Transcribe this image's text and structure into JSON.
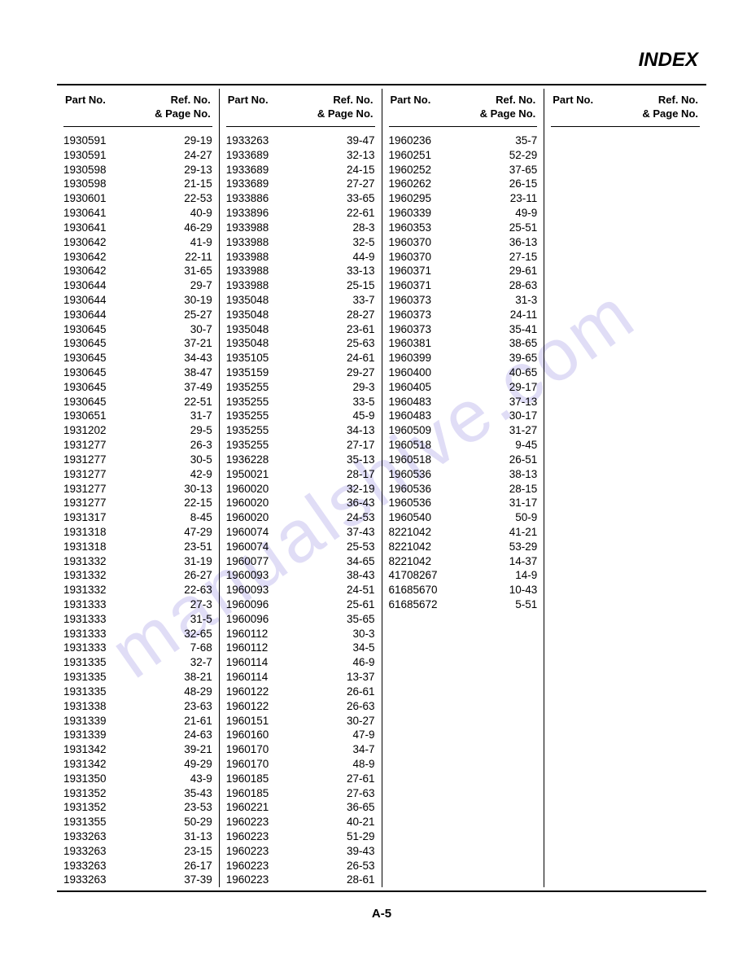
{
  "title": "INDEX",
  "page_number": "A-5",
  "watermark": "manualshive.com",
  "header": {
    "part": "Part No.",
    "ref": "Ref. No.",
    "page": "&  Page No."
  },
  "columns": [
    [
      {
        "part": "1930591",
        "ref": "29-19"
      },
      {
        "part": "1930591",
        "ref": "24-27"
      },
      {
        "part": "1930598",
        "ref": "29-13"
      },
      {
        "part": "1930598",
        "ref": "21-15"
      },
      {
        "part": "1930601",
        "ref": "22-53"
      },
      {
        "part": "1930641",
        "ref": "40-9"
      },
      {
        "part": "1930641",
        "ref": "46-29"
      },
      {
        "part": "1930642",
        "ref": "41-9"
      },
      {
        "part": "1930642",
        "ref": "22-11"
      },
      {
        "part": "1930642",
        "ref": "31-65"
      },
      {
        "part": "1930644",
        "ref": "29-7"
      },
      {
        "part": "1930644",
        "ref": "30-19"
      },
      {
        "part": "1930644",
        "ref": "25-27"
      },
      {
        "part": "1930645",
        "ref": "30-7"
      },
      {
        "part": "1930645",
        "ref": "37-21"
      },
      {
        "part": "1930645",
        "ref": "34-43"
      },
      {
        "part": "1930645",
        "ref": "38-47"
      },
      {
        "part": "1930645",
        "ref": "37-49"
      },
      {
        "part": "1930645",
        "ref": "22-51"
      },
      {
        "part": "1930651",
        "ref": "31-7"
      },
      {
        "part": "1931202",
        "ref": "29-5"
      },
      {
        "part": "1931277",
        "ref": "26-3"
      },
      {
        "part": "1931277",
        "ref": "30-5"
      },
      {
        "part": "1931277",
        "ref": "42-9"
      },
      {
        "part": "1931277",
        "ref": "30-13"
      },
      {
        "part": "1931277",
        "ref": "22-15"
      },
      {
        "part": "1931317",
        "ref": "8-45"
      },
      {
        "part": "1931318",
        "ref": "47-29"
      },
      {
        "part": "1931318",
        "ref": "23-51"
      },
      {
        "part": "1931332",
        "ref": "31-19"
      },
      {
        "part": "1931332",
        "ref": "26-27"
      },
      {
        "part": "1931332",
        "ref": "22-63"
      },
      {
        "part": "1931333",
        "ref": "27-3"
      },
      {
        "part": "1931333",
        "ref": "31-5"
      },
      {
        "part": "1931333",
        "ref": "32-65"
      },
      {
        "part": "1931333",
        "ref": "7-68"
      },
      {
        "part": "1931335",
        "ref": "32-7"
      },
      {
        "part": "1931335",
        "ref": "38-21"
      },
      {
        "part": "1931335",
        "ref": "48-29"
      },
      {
        "part": "1931338",
        "ref": "23-63"
      },
      {
        "part": "1931339",
        "ref": "21-61"
      },
      {
        "part": "1931339",
        "ref": "24-63"
      },
      {
        "part": "1931342",
        "ref": "39-21"
      },
      {
        "part": "1931342",
        "ref": "49-29"
      },
      {
        "part": "1931350",
        "ref": "43-9"
      },
      {
        "part": "1931352",
        "ref": "35-43"
      },
      {
        "part": "1931352",
        "ref": "23-53"
      },
      {
        "part": "1931355",
        "ref": "50-29"
      },
      {
        "part": "1933263",
        "ref": "31-13"
      },
      {
        "part": "1933263",
        "ref": "23-15"
      },
      {
        "part": "1933263",
        "ref": "26-17"
      },
      {
        "part": "1933263",
        "ref": "37-39"
      }
    ],
    [
      {
        "part": "1933263",
        "ref": "39-47"
      },
      {
        "part": "1933689",
        "ref": "32-13"
      },
      {
        "part": "1933689",
        "ref": "24-15"
      },
      {
        "part": "1933689",
        "ref": "27-27"
      },
      {
        "part": "1933886",
        "ref": "33-65"
      },
      {
        "part": "1933896",
        "ref": "22-61"
      },
      {
        "part": "1933988",
        "ref": "28-3"
      },
      {
        "part": "1933988",
        "ref": "32-5"
      },
      {
        "part": "1933988",
        "ref": "44-9"
      },
      {
        "part": "1933988",
        "ref": "33-13"
      },
      {
        "part": "1933988",
        "ref": "25-15"
      },
      {
        "part": "1935048",
        "ref": "33-7"
      },
      {
        "part": "1935048",
        "ref": "28-27"
      },
      {
        "part": "1935048",
        "ref": "23-61"
      },
      {
        "part": "1935048",
        "ref": "25-63"
      },
      {
        "part": "1935105",
        "ref": "24-61"
      },
      {
        "part": "1935159",
        "ref": "29-27"
      },
      {
        "part": "1935255",
        "ref": "29-3"
      },
      {
        "part": "1935255",
        "ref": "33-5"
      },
      {
        "part": "1935255",
        "ref": "45-9"
      },
      {
        "part": "1935255",
        "ref": "34-13"
      },
      {
        "part": "1935255",
        "ref": "27-17"
      },
      {
        "part": "1936228",
        "ref": "35-13"
      },
      {
        "part": "1950021",
        "ref": "28-17"
      },
      {
        "part": "1960020",
        "ref": "32-19"
      },
      {
        "part": "1960020",
        "ref": "36-43"
      },
      {
        "part": "1960020",
        "ref": "24-53"
      },
      {
        "part": "1960074",
        "ref": "37-43"
      },
      {
        "part": "1960074",
        "ref": "25-53"
      },
      {
        "part": "1960077",
        "ref": "34-65"
      },
      {
        "part": "1960093",
        "ref": "38-43"
      },
      {
        "part": "1960093",
        "ref": "24-51"
      },
      {
        "part": "1960096",
        "ref": "25-61"
      },
      {
        "part": "1960096",
        "ref": "35-65"
      },
      {
        "part": "1960112",
        "ref": "30-3"
      },
      {
        "part": "1960112",
        "ref": "34-5"
      },
      {
        "part": "1960114",
        "ref": "46-9"
      },
      {
        "part": "1960114",
        "ref": "13-37"
      },
      {
        "part": "1960122",
        "ref": "26-61"
      },
      {
        "part": "1960122",
        "ref": "26-63"
      },
      {
        "part": "1960151",
        "ref": "30-27"
      },
      {
        "part": "1960160",
        "ref": "47-9"
      },
      {
        "part": "1960170",
        "ref": "34-7"
      },
      {
        "part": "1960170",
        "ref": "48-9"
      },
      {
        "part": "1960185",
        "ref": "27-61"
      },
      {
        "part": "1960185",
        "ref": "27-63"
      },
      {
        "part": "1960221",
        "ref": "36-65"
      },
      {
        "part": "1960223",
        "ref": "40-21"
      },
      {
        "part": "1960223",
        "ref": "51-29"
      },
      {
        "part": "1960223",
        "ref": "39-43"
      },
      {
        "part": "1960223",
        "ref": "26-53"
      },
      {
        "part": "1960223",
        "ref": "28-61"
      }
    ],
    [
      {
        "part": "1960236",
        "ref": "35-7"
      },
      {
        "part": "1960251",
        "ref": "52-29"
      },
      {
        "part": "1960252",
        "ref": "37-65"
      },
      {
        "part": "1960262",
        "ref": "26-15"
      },
      {
        "part": "1960295",
        "ref": "23-11"
      },
      {
        "part": "1960339",
        "ref": "49-9"
      },
      {
        "part": "1960353",
        "ref": "25-51"
      },
      {
        "part": "1960370",
        "ref": "36-13"
      },
      {
        "part": "1960370",
        "ref": "27-15"
      },
      {
        "part": "1960371",
        "ref": "29-61"
      },
      {
        "part": "1960371",
        "ref": "28-63"
      },
      {
        "part": "1960373",
        "ref": "31-3"
      },
      {
        "part": "1960373",
        "ref": "24-11"
      },
      {
        "part": "1960373",
        "ref": "35-41"
      },
      {
        "part": "1960381",
        "ref": "38-65"
      },
      {
        "part": "1960399",
        "ref": "39-65"
      },
      {
        "part": "1960400",
        "ref": "40-65"
      },
      {
        "part": "1960405",
        "ref": "29-17"
      },
      {
        "part": "1960483",
        "ref": "37-13"
      },
      {
        "part": "1960483",
        "ref": "30-17"
      },
      {
        "part": "1960509",
        "ref": "31-27"
      },
      {
        "part": "1960518",
        "ref": "9-45"
      },
      {
        "part": "1960518",
        "ref": "26-51"
      },
      {
        "part": "1960536",
        "ref": "38-13"
      },
      {
        "part": "1960536",
        "ref": "28-15"
      },
      {
        "part": "1960536",
        "ref": "31-17"
      },
      {
        "part": "1960540",
        "ref": "50-9"
      },
      {
        "part": "8221042",
        "ref": "41-21"
      },
      {
        "part": "8221042",
        "ref": "53-29"
      },
      {
        "part": "8221042",
        "ref": "14-37"
      },
      {
        "part": "41708267",
        "ref": "14-9"
      },
      {
        "part": "61685670",
        "ref": "10-43"
      },
      {
        "part": "61685672",
        "ref": "5-51"
      }
    ],
    []
  ]
}
